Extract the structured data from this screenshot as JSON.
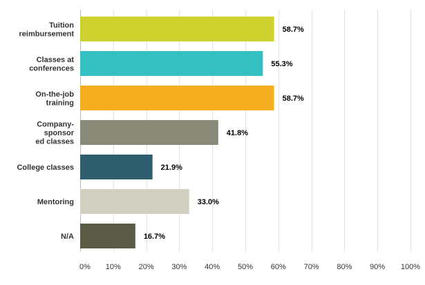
{
  "chart_data": {
    "type": "bar",
    "orientation": "horizontal",
    "categories": [
      [
        "Tuition",
        "reimbursement"
      ],
      [
        "Classes at",
        "conferences"
      ],
      [
        "On-the-job",
        "training"
      ],
      [
        "Company-",
        "sponsor",
        "ed classes"
      ],
      [
        "College classes"
      ],
      [
        "Mentoring"
      ],
      [
        "N/A"
      ]
    ],
    "values": [
      58.7,
      55.3,
      58.7,
      41.8,
      21.9,
      33.0,
      16.7
    ],
    "value_labels": [
      "58.7%",
      "55.3%",
      "58.7%",
      "41.8%",
      "21.9%",
      "33.0%",
      "16.7%"
    ],
    "bar_colors": [
      "#cdd22e",
      "#34bfc0",
      "#f5ae20",
      "#8a8a78",
      "#2f5f6f",
      "#d1d0c0",
      "#5c5b48"
    ],
    "xlim": [
      0,
      100
    ],
    "xticks": [
      0,
      10,
      20,
      30,
      40,
      50,
      60,
      70,
      80,
      90,
      100
    ],
    "xtick_labels": [
      "0%",
      "10%",
      "20%",
      "30%",
      "40%",
      "50%",
      "60%",
      "70%",
      "80%",
      "90%",
      "100%"
    ],
    "grid": true,
    "title": "",
    "xlabel": "",
    "ylabel": ""
  }
}
